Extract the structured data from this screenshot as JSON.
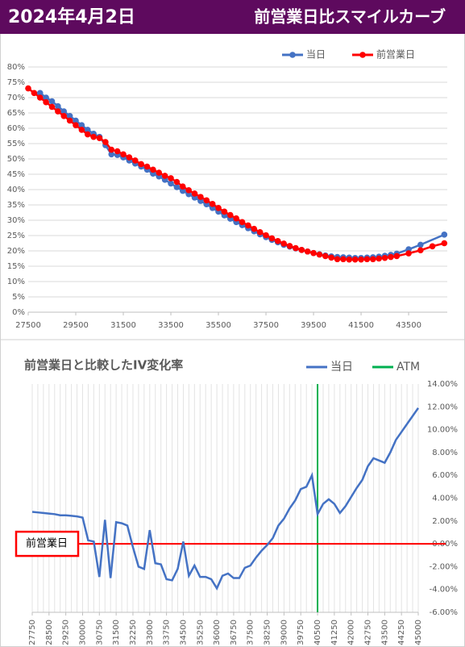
{
  "header": {
    "date": "2024年4月2日",
    "title": "前営業日比スマイルカーブ"
  },
  "chart_data": [
    {
      "type": "line",
      "grid": "y",
      "legend": "top-right",
      "xlim": [
        27500,
        45125
      ],
      "xticks": [
        27500,
        29500,
        31500,
        33500,
        35500,
        37500,
        39500,
        41500,
        43500
      ],
      "ylim": [
        0,
        80
      ],
      "yticks": [
        {
          "value": 0,
          "label": "0%"
        },
        {
          "value": 5,
          "label": "5%"
        },
        {
          "value": 10,
          "label": "10%"
        },
        {
          "value": 15,
          "label": "15%"
        },
        {
          "value": 20,
          "label": "20%"
        },
        {
          "value": 25,
          "label": "25%"
        },
        {
          "value": 30,
          "label": "30%"
        },
        {
          "value": 35,
          "label": "35%"
        },
        {
          "value": 40,
          "label": "40%"
        },
        {
          "value": 45,
          "label": "45%"
        },
        {
          "value": 50,
          "label": "50%"
        },
        {
          "value": 55,
          "label": "55%"
        },
        {
          "value": 60,
          "label": "60%"
        },
        {
          "value": 65,
          "label": "65%"
        },
        {
          "value": 70,
          "label": "70%"
        },
        {
          "value": 75,
          "label": "75%"
        },
        {
          "value": 80,
          "label": "80%"
        }
      ],
      "series": [
        {
          "name": "当日",
          "color": "#4472c4",
          "x": [
            28000,
            28250,
            28500,
            28750,
            29000,
            29250,
            29500,
            29750,
            30000,
            30250,
            30500,
            30750,
            31000,
            31250,
            31500,
            31750,
            32000,
            32250,
            32500,
            32750,
            33000,
            33250,
            33500,
            33750,
            34000,
            34250,
            34500,
            34750,
            35000,
            35250,
            35500,
            35750,
            36000,
            36250,
            36500,
            36750,
            37000,
            37250,
            37500,
            37750,
            38000,
            38250,
            38500,
            38750,
            39000,
            39250,
            39500,
            39750,
            40000,
            40250,
            40500,
            40750,
            41000,
            41250,
            41500,
            41750,
            42000,
            42250,
            42500,
            42750,
            43000,
            43500,
            44000,
            45000
          ],
          "values": [
            71.5,
            70,
            68.8,
            67.2,
            65.5,
            64,
            62.5,
            61,
            59.5,
            58.2,
            57.2,
            54.5,
            51.5,
            51.3,
            50.5,
            49.5,
            48.5,
            47.5,
            46.5,
            45.2,
            44.3,
            43.2,
            42,
            40.8,
            39.6,
            38.5,
            37.4,
            36.3,
            35.2,
            34,
            32.8,
            31.6,
            30.5,
            29.4,
            28.4,
            27.4,
            26.4,
            25.4,
            24.5,
            23.6,
            22.8,
            22,
            21.4,
            20.8,
            20.3,
            19.8,
            19.3,
            18.9,
            18.5,
            18.2,
            18,
            17.9,
            17.8,
            17.7,
            17.7,
            17.8,
            17.9,
            18.1,
            18.4,
            18.7,
            19.1,
            20.5,
            22,
            25.3
          ]
        },
        {
          "name": "前営業日",
          "color": "#ff0000",
          "x": [
            27500,
            27750,
            28000,
            28250,
            28500,
            28750,
            29000,
            29250,
            29500,
            29750,
            30000,
            30250,
            30500,
            30750,
            31000,
            31250,
            31500,
            31750,
            32000,
            32250,
            32500,
            32750,
            33000,
            33250,
            33500,
            33750,
            34000,
            34250,
            34500,
            34750,
            35000,
            35250,
            35500,
            35750,
            36000,
            36250,
            36500,
            36750,
            37000,
            37250,
            37500,
            37750,
            38000,
            38250,
            38500,
            38750,
            39000,
            39250,
            39500,
            39750,
            40000,
            40250,
            40500,
            40750,
            41000,
            41250,
            41500,
            41750,
            42000,
            42250,
            42500,
            42750,
            43000,
            43500,
            44000,
            44500,
            45000
          ],
          "values": [
            73,
            71.5,
            70,
            68.5,
            67,
            65.5,
            64,
            62.5,
            61,
            59.5,
            58,
            57.2,
            56.8,
            55.5,
            53,
            52.5,
            51.5,
            50.5,
            49.5,
            48.3,
            47.5,
            46.5,
            45.5,
            44.5,
            43.7,
            42.5,
            41,
            39.8,
            38.7,
            37.6,
            36.5,
            35.3,
            34,
            32.8,
            31.7,
            30.6,
            29.4,
            28.3,
            27.2,
            26.1,
            25.1,
            24.1,
            23.2,
            22.4,
            21.6,
            20.9,
            20.3,
            19.8,
            19.3,
            18.8,
            18.3,
            17.8,
            17.3,
            17.3,
            17.2,
            17.2,
            17.2,
            17.3,
            17.3,
            17.5,
            17.7,
            18,
            18.3,
            19.2,
            20.2,
            21.5,
            22.5
          ]
        }
      ]
    },
    {
      "type": "line",
      "title": "前営業日と比較したIV変化率",
      "grid": "x",
      "legend": "top-right",
      "yaxis": "right",
      "x": [
        27750,
        28000,
        28250,
        28500,
        28750,
        29000,
        29250,
        29500,
        29750,
        30000,
        30250,
        30500,
        30750,
        31000,
        31250,
        31500,
        31750,
        32000,
        32250,
        32500,
        32750,
        33000,
        33250,
        33500,
        33750,
        34000,
        34250,
        34500,
        34750,
        35000,
        35250,
        35500,
        35750,
        36000,
        36250,
        36500,
        36750,
        37000,
        37250,
        37500,
        37750,
        38000,
        38250,
        38500,
        38750,
        39000,
        39250,
        39500,
        39750,
        40000,
        40250,
        40500,
        40750,
        41000,
        41250,
        41500,
        41750,
        42000,
        42250,
        42500,
        42750,
        43000,
        43250,
        43500,
        43750,
        44000,
        44250,
        44500,
        44750,
        45000
      ],
      "xlim": [
        27750,
        45000
      ],
      "xticks": [
        27750,
        28500,
        29250,
        30000,
        30750,
        31500,
        32250,
        33000,
        33750,
        34500,
        35250,
        36000,
        36750,
        37500,
        38250,
        39000,
        39750,
        40500,
        41250,
        42000,
        42750,
        43500,
        44250,
        45000
      ],
      "ylim": [
        -6,
        14
      ],
      "yticks": [
        {
          "value": -6,
          "label": "-6.00%"
        },
        {
          "value": -4,
          "label": "-4.00%"
        },
        {
          "value": -2,
          "label": "-2.00%"
        },
        {
          "value": 0,
          "label": "0.00%"
        },
        {
          "value": 2,
          "label": "2.00%"
        },
        {
          "value": 4,
          "label": "4.00%"
        },
        {
          "value": 6,
          "label": "6.00%"
        },
        {
          "value": 8,
          "label": "8.00%"
        },
        {
          "value": 10,
          "label": "10.00%"
        },
        {
          "value": 12,
          "label": "12.00%"
        },
        {
          "value": 14,
          "label": "14.00%"
        }
      ],
      "series": [
        {
          "name": "当日",
          "color": "#4472c4",
          "values": [
            2.8,
            2.75,
            2.7,
            2.65,
            2.6,
            2.5,
            2.5,
            2.45,
            2.4,
            2.3,
            0.3,
            0.2,
            -2.9,
            2.1,
            -3.0,
            1.9,
            1.8,
            1.6,
            -0.3,
            -2.0,
            -2.2,
            1.2,
            -1.7,
            -1.8,
            -3.1,
            -3.2,
            -2.2,
            0.2,
            -2.8,
            -1.9,
            -2.9,
            -2.9,
            -3.1,
            -3.9,
            -2.8,
            -2.6,
            -3.0,
            -3.0,
            -2.1,
            -1.9,
            -1.2,
            -0.6,
            -0.1,
            0.5,
            1.6,
            2.2,
            3.1,
            3.8,
            4.8,
            5.0,
            6.0,
            2.6,
            3.5,
            3.9,
            3.5,
            2.7,
            3.3,
            4.1,
            4.9,
            5.6,
            6.8,
            7.5,
            7.3,
            7.1,
            8.0,
            9.1,
            9.8,
            10.5,
            11.2,
            11.9
          ]
        }
      ],
      "reference_lines": [
        {
          "name": "ATM",
          "color": "#00b050",
          "x": 40500,
          "in_legend": true
        },
        {
          "name": "前営業日",
          "color": "#ff0000",
          "y": 0,
          "label_box": true
        }
      ]
    }
  ]
}
